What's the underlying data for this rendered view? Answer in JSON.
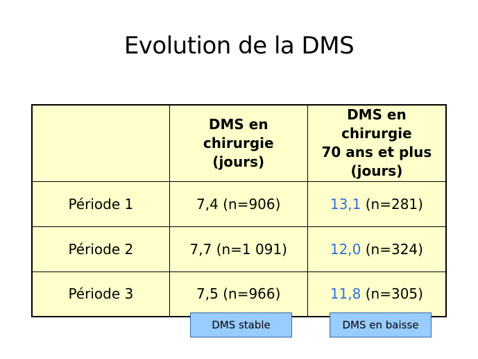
{
  "title": "Evolution de la DMS",
  "table": {
    "headers": [
      {
        "lines": []
      },
      {
        "lines": [
          "DMS en",
          "chirurgie",
          "(jours)"
        ]
      },
      {
        "lines": [
          "DMS en",
          "chirurgie",
          "70 ans et plus",
          "(jours)"
        ]
      }
    ],
    "rows": [
      {
        "label": "Période 1",
        "all_value": "7,4",
        "all_count": "(n=906)",
        "senior_value": "13,1",
        "senior_count": "(n=281)"
      },
      {
        "label": "Période 2",
        "all_value": "7,7",
        "all_count": "(n=1 091)",
        "senior_value": "12,0",
        "senior_count": "(n=324)"
      },
      {
        "label": "Période 3",
        "all_value": "7,5",
        "all_count": "(n=966)",
        "senior_value": "11,8",
        "senior_count": "(n=305)"
      }
    ]
  },
  "annotations": {
    "stable": "DMS stable",
    "baisse": "DMS en baisse"
  },
  "colors": {
    "table_fill": "#ffffcc",
    "highlight_value": "#2f6fd8",
    "annotation_fill": "#99ccff"
  }
}
